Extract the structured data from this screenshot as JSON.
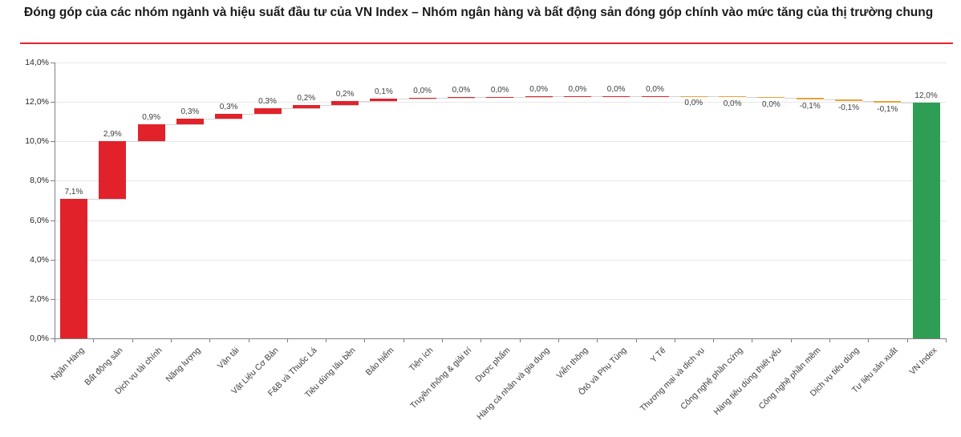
{
  "header": {
    "title": "Đóng góp của các nhóm ngành và hiệu suất đầu tư của VN Index – Nhóm ngân hàng và bất động sản đóng góp chính vào mức tăng của thị trường chung",
    "accent_color": "#e8232e"
  },
  "chart_data": {
    "type": "bar",
    "subtype": "waterfall",
    "title": "Đóng góp của các nhóm ngành và hiệu suất đầu tư của VN Index",
    "number_format": "comma-decimal-percent",
    "legend": "none",
    "grid": "horizontal",
    "y_axis": {
      "min": 0,
      "max": 14,
      "step": 2,
      "tick_values": [
        0,
        2,
        4,
        6,
        8,
        10,
        12,
        14
      ],
      "tick_labels": [
        "0,0%",
        "2,0%",
        "4,0%",
        "6,0%",
        "8,0%",
        "10,0%",
        "12,0%",
        "14,0%"
      ]
    },
    "colors": {
      "increase": "#e2222a",
      "decrease": "#e9a23b",
      "total": "#2f9e55"
    },
    "bars": [
      {
        "label": "Ngân Hàng",
        "display": "7,1%",
        "value": 7.1,
        "start": 0,
        "end": 7.1,
        "kind": "increase"
      },
      {
        "label": "Bất động sản",
        "display": "2,9%",
        "value": 2.9,
        "start": 7.1,
        "end": 10.0,
        "kind": "increase"
      },
      {
        "label": "Dịch vụ tài chính",
        "display": "0,9%",
        "value": 0.9,
        "start": 10.0,
        "end": 10.87,
        "kind": "increase"
      },
      {
        "label": "Năng lượng",
        "display": "0,3%",
        "value": 0.3,
        "start": 10.87,
        "end": 11.15,
        "kind": "increase"
      },
      {
        "label": "Vận tải",
        "display": "0,3%",
        "value": 0.3,
        "start": 11.15,
        "end": 11.41,
        "kind": "increase"
      },
      {
        "label": "Vật Liệu Cơ Bản",
        "display": "0,3%",
        "value": 0.3,
        "start": 11.41,
        "end": 11.66,
        "kind": "increase"
      },
      {
        "label": "F&B và Thuốc Lá",
        "display": "0,2%",
        "value": 0.2,
        "start": 11.66,
        "end": 11.86,
        "kind": "increase"
      },
      {
        "label": "Tiêu dùng lâu bền",
        "display": "0,2%",
        "value": 0.2,
        "start": 11.86,
        "end": 12.04,
        "kind": "increase"
      },
      {
        "label": "Bảo hiểm",
        "display": "0,1%",
        "value": 0.1,
        "start": 12.04,
        "end": 12.16,
        "kind": "increase"
      },
      {
        "label": "Tiện ích",
        "display": "0,0%",
        "value": 0.0,
        "start": 12.16,
        "end": 12.21,
        "kind": "increase"
      },
      {
        "label": "Truyền thông & giải trí",
        "display": "0,0%",
        "value": 0.0,
        "start": 12.21,
        "end": 12.25,
        "kind": "increase"
      },
      {
        "label": "Dược phẩm",
        "display": "0,0%",
        "value": 0.0,
        "start": 12.25,
        "end": 12.27,
        "kind": "increase"
      },
      {
        "label": "Hàng cá nhân và gia dụng",
        "display": "0,0%",
        "value": 0.0,
        "start": 12.27,
        "end": 12.28,
        "kind": "increase"
      },
      {
        "label": "Viễn thông",
        "display": "0,0%",
        "value": 0.0,
        "start": 12.28,
        "end": 12.29,
        "kind": "increase"
      },
      {
        "label": "Ôtô và Phụ Tùng",
        "display": "0,0%",
        "value": 0.0,
        "start": 12.29,
        "end": 12.295,
        "kind": "increase"
      },
      {
        "label": "Y Tế",
        "display": "0,0%",
        "value": 0.0,
        "start": 12.295,
        "end": 12.3,
        "kind": "increase"
      },
      {
        "label": "Thương mại và dịch vụ",
        "display": "0,0%",
        "value": 0.0,
        "start": 12.3,
        "end": 12.28,
        "kind": "decrease"
      },
      {
        "label": "Công nghệ phần cứng",
        "display": "0,0%",
        "value": 0.0,
        "start": 12.28,
        "end": 12.26,
        "kind": "decrease"
      },
      {
        "label": "Hàng tiêu dùng thiết yếu",
        "display": "0,0%",
        "value": 0.0,
        "start": 12.26,
        "end": 12.21,
        "kind": "decrease"
      },
      {
        "label": "Công nghệ phần mềm",
        "display": "-0,1%",
        "value": -0.1,
        "start": 12.21,
        "end": 12.13,
        "kind": "decrease"
      },
      {
        "label": "Dịch vụ tiêu dùng",
        "display": "-0,1%",
        "value": -0.1,
        "start": 12.13,
        "end": 12.05,
        "kind": "decrease"
      },
      {
        "label": "Tư liệu sản xuất",
        "display": "-0,1%",
        "value": -0.1,
        "start": 12.05,
        "end": 11.97,
        "kind": "decrease"
      },
      {
        "label": "VN Index",
        "display": "12,0%",
        "value": 12.0,
        "start": 0,
        "end": 11.97,
        "kind": "total"
      }
    ]
  }
}
